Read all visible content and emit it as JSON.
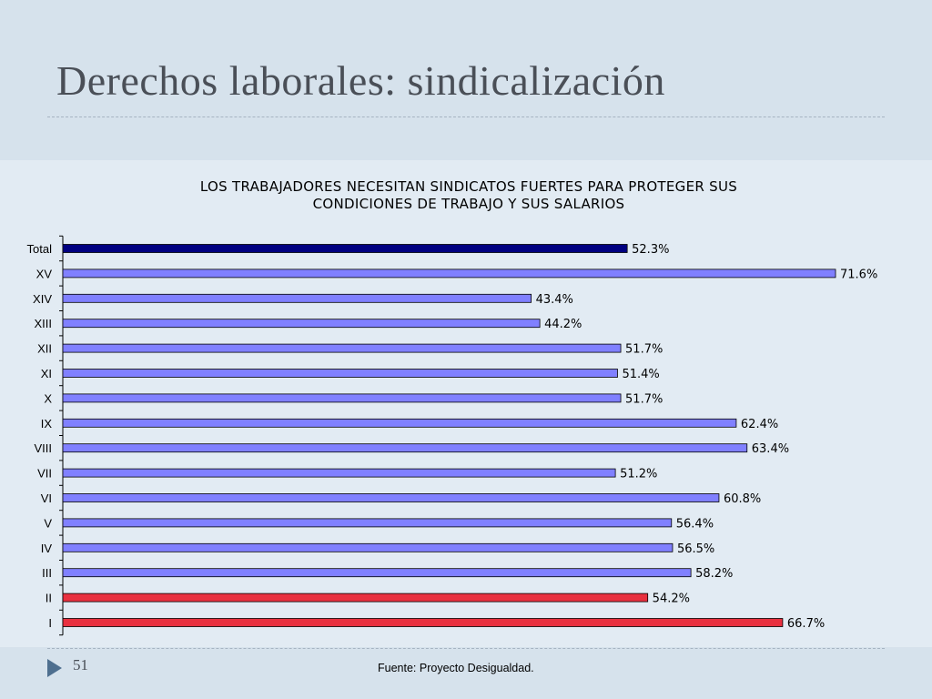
{
  "slide": {
    "title": "Derechos laborales: sindicalización",
    "number": "51",
    "source": "Fuente: Proyecto Desigualdad."
  },
  "chart_data": {
    "type": "bar",
    "orientation": "horizontal",
    "title_lines": [
      "LOS TRABAJADORES NECESITAN SINDICATOS FUERTES PARA PROTEGER SUS",
      "CONDICIONES DE TRABAJO Y SUS SALARIOS"
    ],
    "categories": [
      "Total",
      "XV",
      "XIV",
      "XIII",
      "XII",
      "XI",
      "X",
      "IX",
      "VIII",
      "VII",
      "VI",
      "V",
      "IV",
      "III",
      "II",
      "I"
    ],
    "values": [
      52.3,
      71.6,
      43.4,
      44.2,
      51.7,
      51.4,
      51.7,
      62.4,
      63.4,
      51.2,
      60.8,
      56.4,
      56.5,
      58.2,
      54.2,
      66.7
    ],
    "value_labels": [
      "52.3%",
      "71.6%",
      "43.4%",
      "44.2%",
      "51.7%",
      "51.4%",
      "51.7%",
      "62.4%",
      "63.4%",
      "51.2%",
      "60.8%",
      "56.4%",
      "56.5%",
      "58.2%",
      "54.2%",
      "66.7%"
    ],
    "bar_colors": [
      "#000080",
      "#8080ff",
      "#8080ff",
      "#8080ff",
      "#8080ff",
      "#8080ff",
      "#8080ff",
      "#8080ff",
      "#8080ff",
      "#8080ff",
      "#8080ff",
      "#8080ff",
      "#8080ff",
      "#8080ff",
      "#e8303f",
      "#e8303f"
    ],
    "xlim": [
      0,
      100
    ],
    "grid": false,
    "legend": "none"
  },
  "colors": {
    "background": "#d6e2ec",
    "accent": "#4e6f8f"
  },
  "icons": {
    "footer_arrow": "triangle-right-icon"
  }
}
